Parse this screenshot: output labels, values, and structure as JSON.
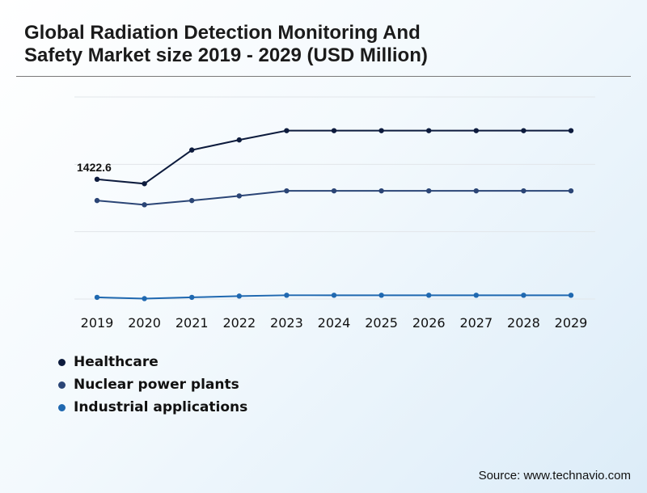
{
  "title_line1": "Global Radiation Detection Monitoring And",
  "title_line2": "Safety Market size 2019 - 2029 (USD Million)",
  "source": "Source: www.technavio.com",
  "chart_data": {
    "type": "line",
    "title": "Global Radiation Detection Monitoring And Safety Market size 2019 - 2029 (USD Million)",
    "x": [
      "2019",
      "2020",
      "2021",
      "2022",
      "2023",
      "2024",
      "2025",
      "2026",
      "2027",
      "2028",
      "2029"
    ],
    "ylim": [
      0,
      2400
    ],
    "grid": true,
    "legend_position": "bottom-left",
    "series": [
      {
        "name": "Healthcare",
        "color": "#0d1b3d",
        "values": [
          1422.6,
          1370,
          1770,
          1890,
          2000,
          2000,
          2000,
          2000,
          2000,
          2000,
          2000
        ]
      },
      {
        "name": "Nuclear power plants",
        "color": "#2b4576",
        "values": [
          1170,
          1120,
          1170,
          1225,
          1285,
          1285,
          1285,
          1285,
          1285,
          1285,
          1285
        ]
      },
      {
        "name": "Industrial applications",
        "color": "#1f68b0",
        "values": [
          20,
          5,
          20,
          35,
          45,
          45,
          45,
          45,
          45,
          45,
          45
        ]
      }
    ],
    "annotations": [
      {
        "series": 0,
        "index": 0,
        "text": "1422.6"
      }
    ]
  }
}
